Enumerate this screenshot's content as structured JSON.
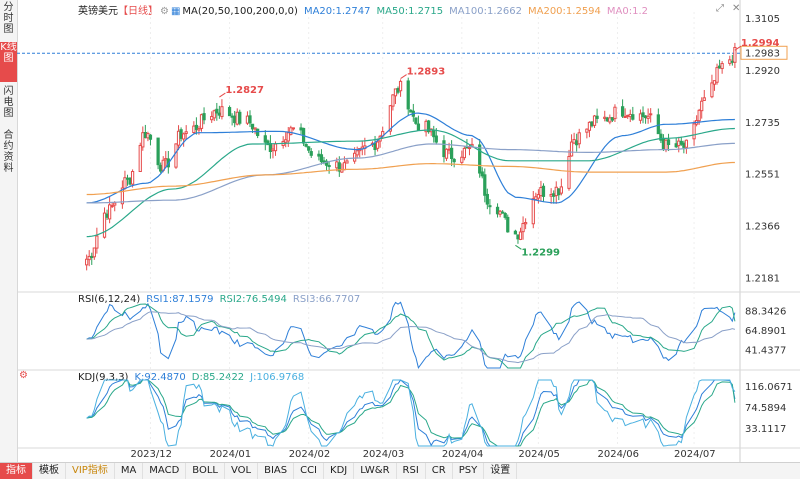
{
  "sidebar": {
    "tabs": [
      {
        "label": "分时图",
        "active": false
      },
      {
        "label": "K线图",
        "active": true
      },
      {
        "label": "闪电图",
        "active": false
      },
      {
        "label": "合约资料",
        "active": false
      }
    ]
  },
  "header": {
    "symbol": "英镑美元",
    "period": "【日线】",
    "ma_params": "MA(20,50,100,200,0,0)",
    "ma20": "MA20:1.2747",
    "ma50": "MA50:1.2715",
    "ma100": "MA100:1.2662",
    "ma200": "MA200:1.2594",
    "ma0": "MA0:1.2"
  },
  "rsi_header": {
    "title": "RSI(6,12,24)",
    "rsi1": "RSI1:87.1579",
    "rsi2": "RSI2:76.5494",
    "rsi3": "RSI3:66.7707"
  },
  "kdj_header": {
    "title": "KDJ(9,3,3)",
    "k": "K:92.4870",
    "d": "D:85.2422",
    "j": "J:106.9768"
  },
  "price_axis": [
    "1.3105",
    "1.2920",
    "1.2735",
    "1.2551",
    "1.2366",
    "1.2181"
  ],
  "current_price": "1.2983",
  "rsi_axis": [
    "88.3426",
    "64.8901",
    "41.4377"
  ],
  "kdj_axis": [
    "116.0671",
    "74.5894",
    "33.1117"
  ],
  "date_labels": [
    "2023/12",
    "2024/01",
    "2024/02",
    "2024/03",
    "2024/04",
    "2024/05",
    "2024/06",
    "2024/07"
  ],
  "bottom_tabs": [
    {
      "label": "指标",
      "active": true
    },
    {
      "label": "模板",
      "active": false
    },
    {
      "label": "VIP指标",
      "active": false,
      "vip": true
    },
    {
      "label": "MA",
      "active": false
    },
    {
      "label": "MACD",
      "active": false
    },
    {
      "label": "BOLL",
      "active": false
    },
    {
      "label": "VOL",
      "active": false
    },
    {
      "label": "BIAS",
      "active": false
    },
    {
      "label": "CCI",
      "active": false
    },
    {
      "label": "KDJ",
      "active": false
    },
    {
      "label": "LW&R",
      "active": false
    },
    {
      "label": "RSI",
      "active": false
    },
    {
      "label": "CR",
      "active": false
    },
    {
      "label": "PSY",
      "active": false
    },
    {
      "label": "设置",
      "active": false
    }
  ],
  "colors": {
    "up": "#e64b4b",
    "down": "#2ba05a",
    "ma20": "#2e7fd8",
    "ma50": "#2aa88a",
    "ma100": "#8aa0c8",
    "ma200": "#f0a050",
    "rsi1": "#2e7fd8",
    "rsi2": "#2aa88a",
    "rsi3": "#8aa0c8",
    "k": "#2e7fd8",
    "d": "#2aa88a",
    "j": "#4ab0e0",
    "current": "#f0a050"
  },
  "chart_data": {
    "type": "candlestick",
    "symbol": "英镑美元",
    "price_range": [
      1.214,
      1.313
    ],
    "rsi_range": [
      20,
      100
    ],
    "kdj_range": [
      0,
      130
    ],
    "annotations": [
      {
        "label": "1.2827",
        "value": 1.2827,
        "date": "2023-12-28"
      },
      {
        "label": "1.2893",
        "value": 1.2893,
        "date": "2024-03-08"
      },
      {
        "label": "1.2299",
        "value": 1.2299,
        "date": "2024-04-22"
      },
      {
        "label": "1.2994",
        "value": 1.2994,
        "date": "2024-07-17"
      }
    ],
    "anchors": [
      [
        "2023-11-06",
        1.225
      ],
      [
        "2023-11-14",
        1.242
      ],
      [
        "2023-11-22",
        1.253
      ],
      [
        "2023-11-29",
        1.27
      ],
      [
        "2023-12-06",
        1.258
      ],
      [
        "2023-12-14",
        1.27
      ],
      [
        "2023-12-28",
        1.278
      ],
      [
        "2024-01-08",
        1.274
      ],
      [
        "2024-01-16",
        1.265
      ],
      [
        "2024-01-26",
        1.271
      ],
      [
        "2024-02-05",
        1.26
      ],
      [
        "2024-02-15",
        1.258
      ],
      [
        "2024-02-26",
        1.266
      ],
      [
        "2024-03-08",
        1.286
      ],
      [
        "2024-03-15",
        1.273
      ],
      [
        "2024-03-28",
        1.262
      ],
      [
        "2024-04-05",
        1.264
      ],
      [
        "2024-04-12",
        1.246
      ],
      [
        "2024-04-22",
        1.234
      ],
      [
        "2024-05-01",
        1.249
      ],
      [
        "2024-05-09",
        1.25
      ],
      [
        "2024-05-15",
        1.268
      ],
      [
        "2024-05-24",
        1.274
      ],
      [
        "2024-06-03",
        1.278
      ],
      [
        "2024-06-12",
        1.276
      ],
      [
        "2024-06-21",
        1.265
      ],
      [
        "2024-06-28",
        1.265
      ],
      [
        "2024-07-05",
        1.281
      ],
      [
        "2024-07-12",
        1.293
      ],
      [
        "2024-07-17",
        1.298
      ]
    ],
    "ma_anchors": {
      "MA20": [
        [
          "2023-11-06",
          1.245
        ],
        [
          "2023-11-29",
          1.252
        ],
        [
          "2023-12-20",
          1.27
        ],
        [
          "2024-01-20",
          1.2705
        ],
        [
          "2024-02-20",
          1.264
        ],
        [
          "2024-03-15",
          1.277
        ],
        [
          "2024-04-05",
          1.269
        ],
        [
          "2024-04-22",
          1.247
        ],
        [
          "2024-05-08",
          1.245
        ],
        [
          "2024-06-03",
          1.269
        ],
        [
          "2024-06-20",
          1.273
        ],
        [
          "2024-07-17",
          1.2747
        ]
      ],
      "MA50": [
        [
          "2023-11-06",
          1.233
        ],
        [
          "2023-12-10",
          1.25
        ],
        [
          "2024-01-10",
          1.266
        ],
        [
          "2024-02-20",
          1.267
        ],
        [
          "2024-03-20",
          1.271
        ],
        [
          "2024-04-20",
          1.26
        ],
        [
          "2024-05-20",
          1.26
        ],
        [
          "2024-06-20",
          1.268
        ],
        [
          "2024-07-17",
          1.2715
        ]
      ],
      "MA100": [
        [
          "2023-11-06",
          1.245
        ],
        [
          "2023-12-10",
          1.246
        ],
        [
          "2024-01-15",
          1.255
        ],
        [
          "2024-02-20",
          1.261
        ],
        [
          "2024-03-20",
          1.266
        ],
        [
          "2024-04-20",
          1.264
        ],
        [
          "2024-05-20",
          1.263
        ],
        [
          "2024-06-20",
          1.264
        ],
        [
          "2024-07-17",
          1.2662
        ]
      ],
      "MA200": [
        [
          "2023-11-06",
          1.248
        ],
        [
          "2023-12-10",
          1.251
        ],
        [
          "2024-01-15",
          1.255
        ],
        [
          "2024-02-20",
          1.257
        ],
        [
          "2024-03-20",
          1.259
        ],
        [
          "2024-04-20",
          1.258
        ],
        [
          "2024-05-20",
          1.256
        ],
        [
          "2024-06-20",
          1.256
        ],
        [
          "2024-07-17",
          1.2594
        ]
      ]
    },
    "rsi_last": {
      "RSI1": 87.1579,
      "RSI2": 76.5494,
      "RSI3": 66.7707
    },
    "kdj_last": {
      "K": 92.487,
      "D": 85.2422,
      "J": 106.9768
    }
  }
}
